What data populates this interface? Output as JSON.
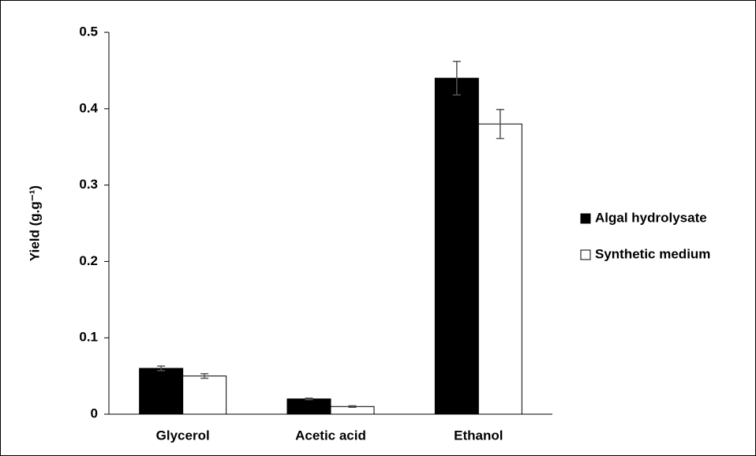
{
  "chart_data": {
    "type": "bar",
    "y_label": "Yield (g.g⁻¹)",
    "categories": [
      "Glycerol",
      "Acetic acid",
      "Ethanol"
    ],
    "series": [
      {
        "name": "Algal hydrolysate",
        "color": "#000000",
        "values": [
          0.06,
          0.02,
          0.44
        ],
        "errors": [
          0.003,
          0.001,
          0.022
        ]
      },
      {
        "name": "Synthetic medium",
        "color": "#ffffff",
        "values": [
          0.05,
          0.01,
          0.38
        ],
        "errors": [
          0.003,
          0.001,
          0.019
        ]
      }
    ],
    "ylim": [
      0,
      0.5
    ],
    "yticks": [
      0,
      0.1,
      0.2,
      0.3,
      0.4,
      0.5
    ],
    "legend": "right"
  }
}
